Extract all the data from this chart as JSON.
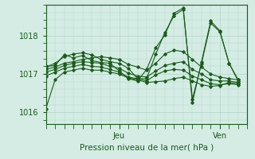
{
  "title": "",
  "xlabel": "Pression niveau de la mer( hPa )",
  "ylabel": "",
  "bg_color": "#d4ece4",
  "grid_color": "#b0d4c8",
  "line_color": "#1a5c1a",
  "ylim": [
    1015.7,
    1018.8
  ],
  "yticks": [
    1016,
    1017,
    1018
  ],
  "xlim": [
    0,
    22
  ],
  "jeu_x": 8.0,
  "ven_x": 19.0,
  "series": [
    [
      0,
      1016.1,
      1,
      1016.85,
      2,
      1017.05,
      3,
      1017.1,
      4,
      1017.15,
      5,
      1017.1,
      6,
      1017.1,
      7,
      1017.05,
      8,
      1017.0,
      9,
      1016.9,
      10,
      1016.85,
      11,
      1016.78,
      12,
      1016.8,
      13,
      1016.82,
      14,
      1016.88,
      15,
      1016.92,
      16,
      1016.82,
      17,
      1016.72,
      18,
      1016.68,
      19,
      1016.7,
      20,
      1016.78,
      21,
      1016.75
    ],
    [
      0,
      1016.95,
      1,
      1017.05,
      2,
      1017.15,
      3,
      1017.2,
      4,
      1017.25,
      5,
      1017.2,
      6,
      1017.18,
      7,
      1017.12,
      8,
      1017.05,
      9,
      1016.92,
      10,
      1016.88,
      11,
      1016.82,
      12,
      1016.98,
      13,
      1017.08,
      14,
      1017.12,
      15,
      1017.1,
      16,
      1016.95,
      17,
      1016.85,
      18,
      1016.75,
      19,
      1016.72,
      20,
      1016.75,
      21,
      1016.72
    ],
    [
      0,
      1017.05,
      1,
      1017.12,
      2,
      1017.22,
      3,
      1017.28,
      4,
      1017.32,
      5,
      1017.3,
      6,
      1017.28,
      7,
      1017.2,
      8,
      1017.15,
      9,
      1017.02,
      10,
      1016.95,
      11,
      1016.92,
      12,
      1017.08,
      13,
      1017.22,
      14,
      1017.28,
      15,
      1017.32,
      16,
      1017.12,
      17,
      1017.0,
      18,
      1016.85,
      19,
      1016.82,
      20,
      1016.82,
      21,
      1016.78
    ],
    [
      0,
      1017.12,
      1,
      1017.18,
      2,
      1017.28,
      3,
      1017.32,
      4,
      1017.38,
      5,
      1017.42,
      6,
      1017.45,
      7,
      1017.42,
      8,
      1017.38,
      9,
      1017.25,
      10,
      1017.18,
      11,
      1017.1,
      12,
      1017.28,
      13,
      1017.52,
      14,
      1017.62,
      15,
      1017.58,
      16,
      1017.38,
      17,
      1017.18,
      18,
      1017.0,
      19,
      1016.92,
      20,
      1016.88,
      21,
      1016.85
    ],
    [
      0,
      1017.18,
      1,
      1017.28,
      2,
      1017.45,
      3,
      1017.52,
      4,
      1017.55,
      5,
      1017.5,
      6,
      1017.38,
      7,
      1017.32,
      8,
      1017.28,
      9,
      1017.15,
      10,
      1016.88,
      11,
      1016.88,
      12,
      1017.52,
      13,
      1018.08,
      14,
      1018.52,
      15,
      1018.68,
      16,
      1016.35,
      17,
      1017.28,
      18,
      1018.32,
      19,
      1018.1,
      20,
      1017.28,
      21,
      1016.82
    ],
    [
      0,
      1017.2,
      1,
      1017.22,
      2,
      1017.5,
      3,
      1017.42,
      4,
      1017.48,
      5,
      1017.35,
      6,
      1017.3,
      7,
      1017.28,
      8,
      1017.08,
      9,
      1016.88,
      10,
      1016.82,
      11,
      1017.12,
      12,
      1017.68,
      13,
      1018.02,
      14,
      1018.58,
      15,
      1018.72,
      16,
      1016.25,
      17,
      1017.32,
      18,
      1018.38,
      19,
      1018.12,
      20,
      1017.28,
      21,
      1016.85
    ]
  ]
}
